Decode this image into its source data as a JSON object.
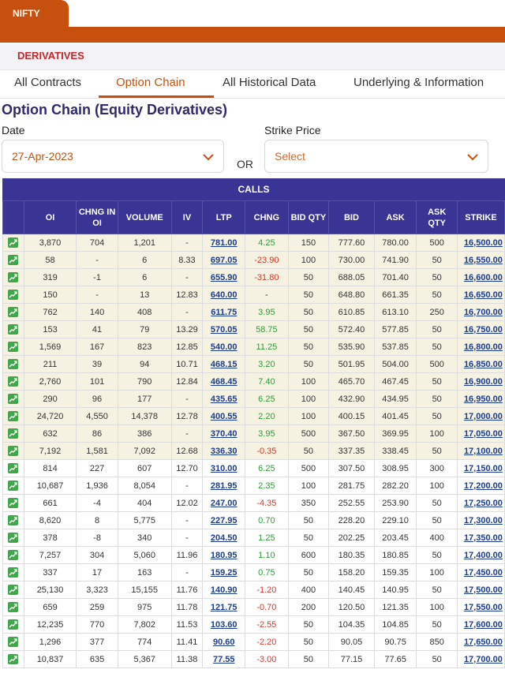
{
  "header": {
    "index_tab": "NIFTY",
    "section": "DERIVATIVES"
  },
  "tabs": [
    {
      "label": "All Contracts",
      "active": false
    },
    {
      "label": "Option Chain",
      "active": true
    },
    {
      "label": "All Historical Data",
      "active": false
    },
    {
      "label": "Underlying & Information",
      "active": false
    }
  ],
  "page_title": "Option Chain (Equity Derivatives)",
  "filters": {
    "date_label": "Date",
    "date_value": "27-Apr-2023",
    "or_label": "OR",
    "strike_label": "Strike Price",
    "strike_placeholder": "Select"
  },
  "table": {
    "band_label": "CALLS",
    "columns": [
      "",
      "OI",
      "CHNG IN OI",
      "VOLUME",
      "IV",
      "LTP",
      "CHNG",
      "BID QTY",
      "BID",
      "ASK",
      "ASK QTY",
      "STRIKE"
    ],
    "rows": [
      {
        "itm": true,
        "oi": "3,870",
        "chng_oi": "704",
        "volume": "1,201",
        "iv": "-",
        "ltp": "781.00",
        "chng": "4.25",
        "bid_qty": "150",
        "bid": "777.60",
        "ask": "780.00",
        "ask_qty": "500",
        "strike": "16,500.00"
      },
      {
        "itm": true,
        "oi": "58",
        "chng_oi": "-",
        "volume": "6",
        "iv": "8.33",
        "ltp": "697.05",
        "chng": "-23.90",
        "bid_qty": "100",
        "bid": "730.00",
        "ask": "741.90",
        "ask_qty": "50",
        "strike": "16,550.00"
      },
      {
        "itm": true,
        "oi": "319",
        "chng_oi": "-1",
        "volume": "6",
        "iv": "-",
        "ltp": "655.90",
        "chng": "-31.80",
        "bid_qty": "50",
        "bid": "688.05",
        "ask": "701.40",
        "ask_qty": "50",
        "strike": "16,600.00"
      },
      {
        "itm": true,
        "oi": "150",
        "chng_oi": "-",
        "volume": "13",
        "iv": "12.83",
        "ltp": "640.00",
        "chng": "-",
        "bid_qty": "50",
        "bid": "648.80",
        "ask": "661.35",
        "ask_qty": "50",
        "strike": "16,650.00"
      },
      {
        "itm": true,
        "oi": "762",
        "chng_oi": "140",
        "volume": "408",
        "iv": "-",
        "ltp": "611.75",
        "chng": "3.95",
        "bid_qty": "50",
        "bid": "610.85",
        "ask": "613.10",
        "ask_qty": "250",
        "strike": "16,700.00"
      },
      {
        "itm": true,
        "oi": "153",
        "chng_oi": "41",
        "volume": "79",
        "iv": "13.29",
        "ltp": "570.05",
        "chng": "58.75",
        "bid_qty": "50",
        "bid": "572.40",
        "ask": "577.85",
        "ask_qty": "50",
        "strike": "16,750.00"
      },
      {
        "itm": true,
        "oi": "1,569",
        "chng_oi": "167",
        "volume": "823",
        "iv": "12.85",
        "ltp": "540.00",
        "chng": "11.25",
        "bid_qty": "50",
        "bid": "535.90",
        "ask": "537.85",
        "ask_qty": "50",
        "strike": "16,800.00"
      },
      {
        "itm": true,
        "oi": "211",
        "chng_oi": "39",
        "volume": "94",
        "iv": "10.71",
        "ltp": "468.15",
        "chng": "3.20",
        "bid_qty": "50",
        "bid": "501.95",
        "ask": "504.00",
        "ask_qty": "500",
        "strike": "16,850.00"
      },
      {
        "itm": true,
        "oi": "2,760",
        "chng_oi": "101",
        "volume": "790",
        "iv": "12.84",
        "ltp": "468.45",
        "chng": "7.40",
        "bid_qty": "100",
        "bid": "465.70",
        "ask": "467.45",
        "ask_qty": "50",
        "strike": "16,900.00"
      },
      {
        "itm": true,
        "oi": "290",
        "chng_oi": "96",
        "volume": "177",
        "iv": "-",
        "ltp": "435.65",
        "chng": "6.25",
        "bid_qty": "100",
        "bid": "432.90",
        "ask": "434.95",
        "ask_qty": "50",
        "strike": "16,950.00"
      },
      {
        "itm": true,
        "oi": "24,720",
        "chng_oi": "4,550",
        "volume": "14,378",
        "iv": "12.78",
        "ltp": "400.55",
        "chng": "2.20",
        "bid_qty": "100",
        "bid": "400.15",
        "ask": "401.45",
        "ask_qty": "50",
        "strike": "17,000.00"
      },
      {
        "itm": true,
        "oi": "632",
        "chng_oi": "86",
        "volume": "386",
        "iv": "-",
        "ltp": "370.40",
        "chng": "3.95",
        "bid_qty": "500",
        "bid": "367.50",
        "ask": "369.95",
        "ask_qty": "100",
        "strike": "17,050.00"
      },
      {
        "itm": true,
        "oi": "7,192",
        "chng_oi": "1,581",
        "volume": "7,092",
        "iv": "12.68",
        "ltp": "336.30",
        "chng": "-0.35",
        "bid_qty": "50",
        "bid": "337.35",
        "ask": "338.45",
        "ask_qty": "50",
        "strike": "17,100.00"
      },
      {
        "itm": false,
        "oi": "814",
        "chng_oi": "227",
        "volume": "607",
        "iv": "12.70",
        "ltp": "310.00",
        "chng": "6.25",
        "bid_qty": "500",
        "bid": "307.50",
        "ask": "308.95",
        "ask_qty": "300",
        "strike": "17,150.00"
      },
      {
        "itm": false,
        "oi": "10,687",
        "chng_oi": "1,936",
        "volume": "8,054",
        "iv": "-",
        "ltp": "281.95",
        "chng": "2.35",
        "bid_qty": "100",
        "bid": "281.75",
        "ask": "282.20",
        "ask_qty": "100",
        "strike": "17,200.00"
      },
      {
        "itm": false,
        "oi": "661",
        "chng_oi": "-4",
        "volume": "404",
        "iv": "12.02",
        "ltp": "247.00",
        "chng": "-4.35",
        "bid_qty": "350",
        "bid": "252.55",
        "ask": "253.90",
        "ask_qty": "50",
        "strike": "17,250.00"
      },
      {
        "itm": false,
        "oi": "8,620",
        "chng_oi": "8",
        "volume": "5,775",
        "iv": "-",
        "ltp": "227.95",
        "chng": "0.70",
        "bid_qty": "50",
        "bid": "228.20",
        "ask": "229.10",
        "ask_qty": "50",
        "strike": "17,300.00"
      },
      {
        "itm": false,
        "oi": "378",
        "chng_oi": "-8",
        "volume": "340",
        "iv": "-",
        "ltp": "204.50",
        "chng": "1.25",
        "bid_qty": "50",
        "bid": "202.25",
        "ask": "203.45",
        "ask_qty": "400",
        "strike": "17,350.00"
      },
      {
        "itm": false,
        "oi": "7,257",
        "chng_oi": "304",
        "volume": "5,060",
        "iv": "11.96",
        "ltp": "180.95",
        "chng": "1.10",
        "bid_qty": "600",
        "bid": "180.35",
        "ask": "180.85",
        "ask_qty": "50",
        "strike": "17,400.00"
      },
      {
        "itm": false,
        "oi": "337",
        "chng_oi": "17",
        "volume": "163",
        "iv": "-",
        "ltp": "159.25",
        "chng": "0.75",
        "bid_qty": "50",
        "bid": "158.20",
        "ask": "159.35",
        "ask_qty": "100",
        "strike": "17,450.00"
      },
      {
        "itm": false,
        "oi": "25,130",
        "chng_oi": "3,323",
        "volume": "15,155",
        "iv": "11.76",
        "ltp": "140.90",
        "chng": "-1.20",
        "bid_qty": "400",
        "bid": "140.45",
        "ask": "140.95",
        "ask_qty": "50",
        "strike": "17,500.00"
      },
      {
        "itm": false,
        "oi": "659",
        "chng_oi": "259",
        "volume": "975",
        "iv": "11.78",
        "ltp": "121.75",
        "chng": "-0.70",
        "bid_qty": "200",
        "bid": "120.50",
        "ask": "121.35",
        "ask_qty": "100",
        "strike": "17,550.00"
      },
      {
        "itm": false,
        "oi": "12,235",
        "chng_oi": "770",
        "volume": "7,802",
        "iv": "11.53",
        "ltp": "103.60",
        "chng": "-2.55",
        "bid_qty": "50",
        "bid": "104.35",
        "ask": "104.85",
        "ask_qty": "50",
        "strike": "17,600.00"
      },
      {
        "itm": false,
        "oi": "1,296",
        "chng_oi": "377",
        "volume": "774",
        "iv": "11.41",
        "ltp": "90.60",
        "chng": "-2.20",
        "bid_qty": "50",
        "bid": "90.05",
        "ask": "90.75",
        "ask_qty": "850",
        "strike": "17,650.00"
      },
      {
        "itm": false,
        "oi": "10,837",
        "chng_oi": "635",
        "volume": "5,367",
        "iv": "11.38",
        "ltp": "77.55",
        "chng": "-3.00",
        "bid_qty": "50",
        "bid": "77.15",
        "ask": "77.65",
        "ask_qty": "50",
        "strike": "17,700.00"
      }
    ]
  },
  "colors": {
    "brand_orange": "#c8500f",
    "header_navy": "#3a3494",
    "itm_bg": "#f6f2e2",
    "positive": "#2e9d3a",
    "negative": "#d33a2c"
  }
}
